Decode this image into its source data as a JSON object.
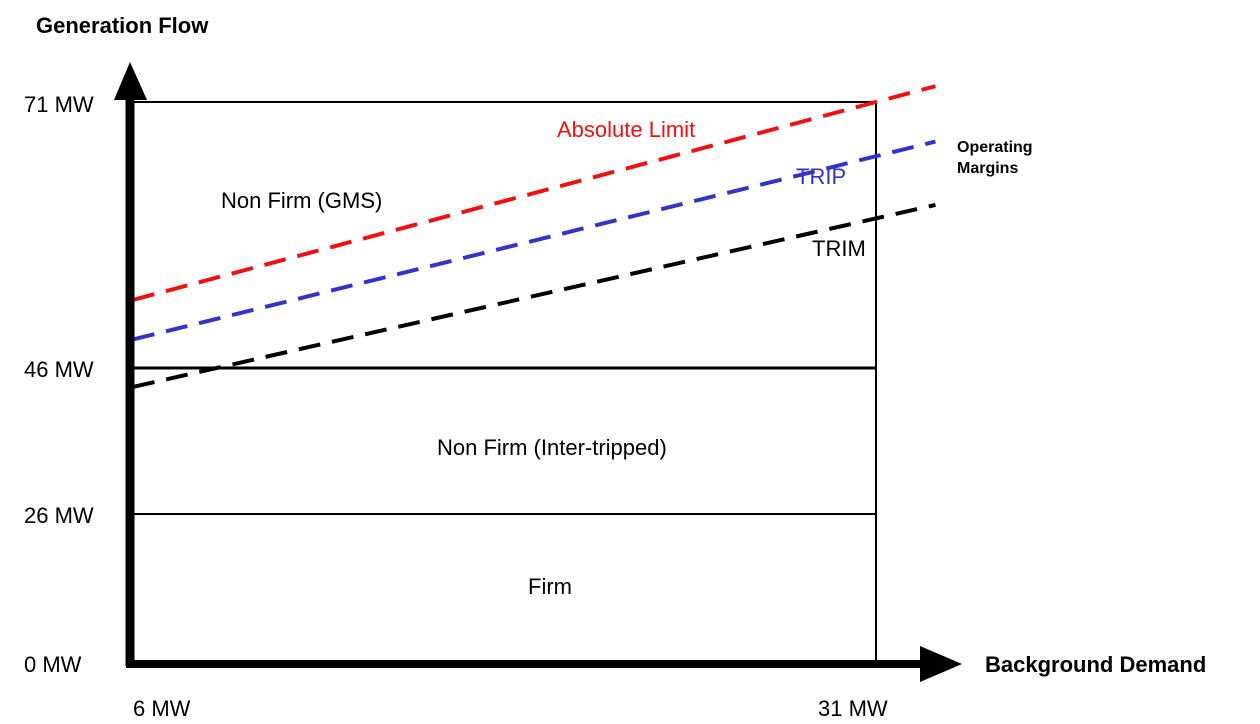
{
  "title": "Generation Flow",
  "x_axis_label": "Background Demand",
  "y_ticks": [
    {
      "id": "y-0",
      "value": 0,
      "label": "0 MW"
    },
    {
      "id": "y-26",
      "value": 26,
      "label": "26 MW"
    },
    {
      "id": "y-46",
      "value": 46,
      "label": "46 MW"
    },
    {
      "id": "y-71",
      "value": 71,
      "label": "71 MW"
    }
  ],
  "x_ticks": [
    {
      "id": "x-6",
      "value": 6,
      "label": "6 MW"
    },
    {
      "id": "x-31",
      "value": 31,
      "label": "31 MW"
    }
  ],
  "regions": {
    "firm": "Firm",
    "inter_tripped": "Non Firm (Inter-tripped)",
    "gms": "Non Firm (GMS)"
  },
  "limit_lines": [
    {
      "id": "absolute-limit",
      "label": "Absolute Limit",
      "color": "#ee1111",
      "start": [
        6,
        46
      ],
      "end": [
        33,
        73
      ]
    },
    {
      "id": "trip",
      "label": "TRIP",
      "color": "#3333cc",
      "start": [
        6,
        41
      ],
      "end": [
        33,
        66
      ]
    },
    {
      "id": "trim",
      "label": "TRIM",
      "color": "#000000",
      "start": [
        6,
        35
      ],
      "end": [
        33,
        58
      ]
    }
  ],
  "operating_margins": {
    "line1": "Operating",
    "line2": "Margins"
  }
}
